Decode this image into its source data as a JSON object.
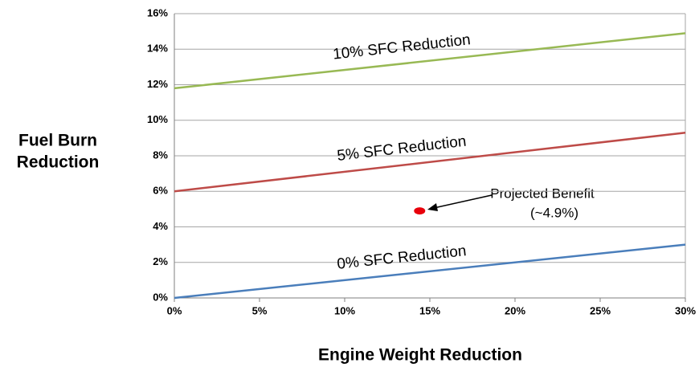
{
  "chart_data": {
    "type": "line",
    "xlabel": "Engine Weight Reduction",
    "ylabel": [
      "Fuel Burn",
      "Reduction"
    ],
    "xlim": [
      0,
      30
    ],
    "ylim": [
      0,
      16
    ],
    "xticks": [
      {
        "value": 0,
        "label": "0%"
      },
      {
        "value": 5,
        "label": "5%"
      },
      {
        "value": 10,
        "label": "10%"
      },
      {
        "value": 15,
        "label": "15%"
      },
      {
        "value": 20,
        "label": "20%"
      },
      {
        "value": 25,
        "label": "25%"
      },
      {
        "value": 30,
        "label": "30%"
      }
    ],
    "yticks": [
      {
        "value": 0,
        "label": "0%"
      },
      {
        "value": 2,
        "label": "2%"
      },
      {
        "value": 4,
        "label": "4%"
      },
      {
        "value": 6,
        "label": "6%"
      },
      {
        "value": 8,
        "label": "8%"
      },
      {
        "value": 10,
        "label": "10%"
      },
      {
        "value": 12,
        "label": "12%"
      },
      {
        "value": 14,
        "label": "14%"
      },
      {
        "value": 16,
        "label": "16%"
      }
    ],
    "grid": true,
    "series": [
      {
        "name": "0% SFC Reduction",
        "color": "#4a7ebb",
        "x": [
          0,
          30
        ],
        "values": [
          0,
          3.0
        ]
      },
      {
        "name": "5% SFC Reduction",
        "color": "#be4b48",
        "x": [
          0,
          30
        ],
        "values": [
          6.0,
          9.3
        ]
      },
      {
        "name": "10% SFC Reduction",
        "color": "#98b954",
        "x": [
          0,
          30
        ],
        "values": [
          11.8,
          14.9
        ]
      }
    ],
    "annotation": {
      "text": [
        "Projected Benefit",
        "(~4.9%)"
      ],
      "x": 14.4,
      "y": 4.9,
      "color": "#e8000b"
    }
  }
}
